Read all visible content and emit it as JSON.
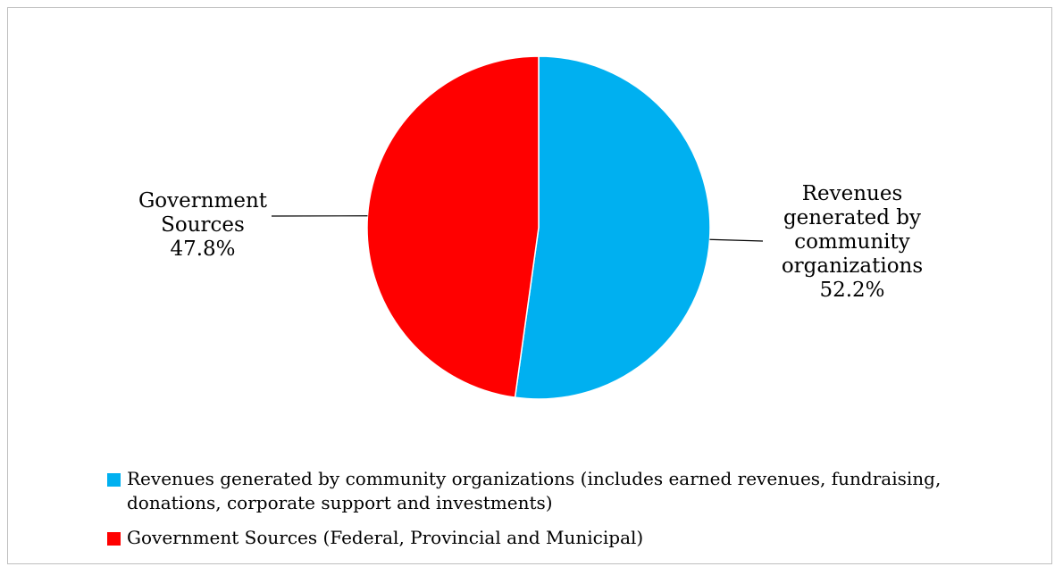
{
  "chart_data": {
    "type": "pie",
    "title": "",
    "slices": [
      {
        "label_lines": [
          "Revenues",
          "generated by",
          "community",
          "organizations"
        ],
        "value": 52.2,
        "value_label": "52.2%",
        "color": "#00B0F0",
        "legend": "Revenues generated by community organizations (includes earned revenues, fundraising, donations, corporate support and investments)"
      },
      {
        "label_lines": [
          "Government",
          "Sources"
        ],
        "value": 47.8,
        "value_label": "47.8%",
        "color": "#FF0000",
        "legend": "Government Sources (Federal, Provincial and Municipal)"
      }
    ],
    "start_angle": "12 o'clock",
    "direction": "clockwise",
    "legend_position": "bottom"
  }
}
